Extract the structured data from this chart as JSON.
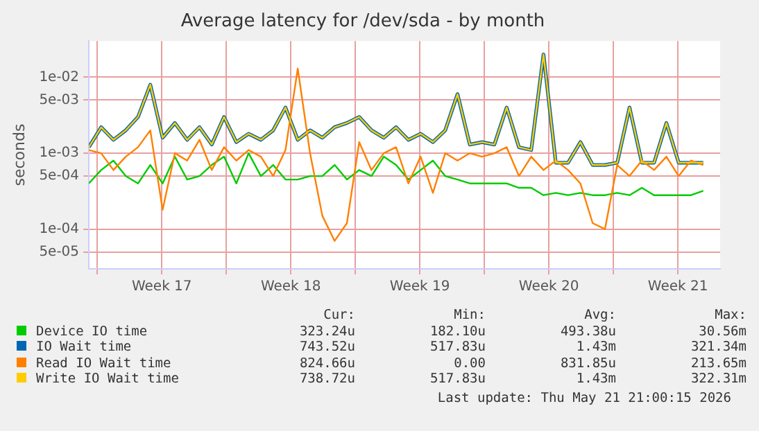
{
  "chart_data": {
    "type": "line",
    "title": "Average latency for /dev/sda - by month",
    "ylabel": "seconds",
    "log": "y",
    "grid": true,
    "legend": "bottom",
    "marker": "none",
    "line_style": "solid",
    "x": [
      "2026-04-19T13:00",
      "2026-04-20T05:00",
      "2026-04-20T21:00",
      "2026-04-21T13:00",
      "2026-04-22T05:00",
      "2026-04-22T21:00",
      "2026-04-23T13:00",
      "2026-04-24T05:00",
      "2026-04-24T21:00",
      "2026-04-25T13:00",
      "2026-04-26T05:00",
      "2026-04-26T21:00",
      "2026-04-27T13:00",
      "2026-04-28T05:00",
      "2026-04-28T21:00",
      "2026-04-29T13:00",
      "2026-04-30T05:00",
      "2026-04-30T21:00",
      "2026-05-01T13:00",
      "2026-05-02T05:00",
      "2026-05-02T21:00",
      "2026-05-03T13:00",
      "2026-05-04T05:00",
      "2026-05-04T21:00",
      "2026-05-05T13:00",
      "2026-05-06T05:00",
      "2026-05-06T21:00",
      "2026-05-07T13:00",
      "2026-05-08T05:00",
      "2026-05-08T21:00",
      "2026-05-09T13:00",
      "2026-05-10T05:00",
      "2026-05-10T21:00",
      "2026-05-11T13:00",
      "2026-05-12T05:00",
      "2026-05-12T21:00",
      "2026-05-13T13:00",
      "2026-05-14T05:00",
      "2026-05-14T21:00",
      "2026-05-15T13:00",
      "2026-05-16T05:00",
      "2026-05-16T21:00",
      "2026-05-17T13:00",
      "2026-05-18T05:00",
      "2026-05-18T21:00",
      "2026-05-19T13:00",
      "2026-05-20T05:00",
      "2026-05-20T21:00",
      "2026-05-21T13:00",
      "2026-05-22T05:00",
      "2026-05-22T21:00"
    ],
    "xlim": [
      "2026-04-19T13:00",
      "2026-05-23T19:00"
    ],
    "xticks": [
      {
        "value": "2026-04-20T00:00",
        "label": null
      },
      {
        "value": "2026-04-23T12:00",
        "label": "Week 17"
      },
      {
        "value": "2026-04-27T00:00",
        "label": null
      },
      {
        "value": "2026-04-30T12:00",
        "label": "Week 18"
      },
      {
        "value": "2026-05-04T00:00",
        "label": null
      },
      {
        "value": "2026-05-07T12:00",
        "label": "Week 19"
      },
      {
        "value": "2026-05-11T00:00",
        "label": null
      },
      {
        "value": "2026-05-14T12:00",
        "label": "Week 20"
      },
      {
        "value": "2026-05-18T00:00",
        "label": null
      },
      {
        "value": "2026-05-21T12:00",
        "label": "Week 21"
      }
    ],
    "ylim": [
      3e-05,
      0.03
    ],
    "yticks": [
      {
        "value": 5e-05,
        "label": "5e-05"
      },
      {
        "value": 0.0001,
        "label": "1e-04"
      },
      {
        "value": 0.0005,
        "label": "5e-04"
      },
      {
        "value": 0.001,
        "label": "1e-03"
      },
      {
        "value": 0.005,
        "label": "5e-03"
      },
      {
        "value": 0.01,
        "label": "1e-02"
      }
    ],
    "series": [
      {
        "name": "Device IO time",
        "color": "#00cc00",
        "values": [
          0.0004,
          0.0006,
          0.0008,
          0.0005,
          0.0004,
          0.0007,
          0.0004,
          0.0009,
          0.00045,
          0.0005,
          0.0007,
          0.0009,
          0.0004,
          0.001,
          0.0005,
          0.0007,
          0.00045,
          0.00045,
          0.0005,
          0.0005,
          0.0007,
          0.00045,
          0.0006,
          0.0005,
          0.0009,
          0.0007,
          0.00045,
          0.0006,
          0.0008,
          0.0005,
          0.00045,
          0.0004,
          0.0004,
          0.0004,
          0.0004,
          0.00035,
          0.00035,
          0.00028,
          0.0003,
          0.00028,
          0.0003,
          0.00028,
          0.00028,
          0.0003,
          0.00028,
          0.00035,
          0.00028,
          0.00028,
          0.00028,
          0.00028,
          0.00032
        ]
      },
      {
        "name": "IO Wait time",
        "color": "#0066b3",
        "values": [
          0.0012,
          0.0022,
          0.0015,
          0.002,
          0.003,
          0.008,
          0.0016,
          0.0025,
          0.0015,
          0.0022,
          0.0013,
          0.003,
          0.0014,
          0.0018,
          0.0015,
          0.002,
          0.004,
          0.0015,
          0.002,
          0.0016,
          0.0022,
          0.0025,
          0.003,
          0.002,
          0.0016,
          0.0022,
          0.0015,
          0.0018,
          0.0014,
          0.002,
          0.006,
          0.0013,
          0.0014,
          0.0013,
          0.004,
          0.0012,
          0.0011,
          0.02,
          0.00075,
          0.00075,
          0.0014,
          0.0007,
          0.0007,
          0.00075,
          0.004,
          0.00075,
          0.00075,
          0.0025,
          0.00075,
          0.00075,
          0.00075
        ]
      },
      {
        "name": "Read IO Wait time",
        "color": "#ff8000",
        "values": [
          0.0011,
          0.001,
          0.0006,
          0.0009,
          0.0012,
          0.002,
          0.00018,
          0.001,
          0.0008,
          0.0015,
          0.0006,
          0.0012,
          0.0008,
          0.0011,
          0.0009,
          0.0005,
          0.0011,
          0.013,
          0.001,
          0.00015,
          7e-05,
          0.00012,
          0.0014,
          0.0006,
          0.001,
          0.0012,
          0.0004,
          0.0009,
          0.0003,
          0.001,
          0.0008,
          0.001,
          0.0009,
          0.001,
          0.0012,
          0.0005,
          0.0009,
          0.0006,
          0.0008,
          0.0006,
          0.0004,
          0.00012,
          0.0001,
          0.0007,
          0.0005,
          0.0008,
          0.0006,
          0.0009,
          0.0005,
          0.0008,
          0.0007
        ]
      },
      {
        "name": "Write IO Wait time",
        "color": "#ffcc00",
        "values": [
          0.0012,
          0.0022,
          0.0015,
          0.002,
          0.003,
          0.008,
          0.0016,
          0.0025,
          0.0015,
          0.0022,
          0.0013,
          0.003,
          0.0014,
          0.0018,
          0.0015,
          0.002,
          0.004,
          0.0015,
          0.002,
          0.0016,
          0.0022,
          0.0025,
          0.003,
          0.002,
          0.0016,
          0.0022,
          0.0015,
          0.0018,
          0.0014,
          0.002,
          0.006,
          0.0013,
          0.0014,
          0.0013,
          0.004,
          0.0012,
          0.0011,
          0.02,
          0.00075,
          0.00075,
          0.0014,
          0.0007,
          0.0007,
          0.00075,
          0.004,
          0.00075,
          0.00075,
          0.0025,
          0.00075,
          0.00075,
          0.00075
        ]
      }
    ],
    "annotations": [
      "Cur:",
      "Min:",
      "Avg:",
      "Max:",
      "323.24u",
      "182.10u",
      "493.38u",
      "30.56m",
      "743.52u",
      "517.83u",
      "1.43m",
      "321.34m",
      "824.66u",
      "0.00",
      "831.85u",
      "213.65m",
      "738.72u",
      "517.83u",
      "1.43m",
      "322.31m",
      "Last update: Thu May 21 21:00:15 2026"
    ]
  }
}
